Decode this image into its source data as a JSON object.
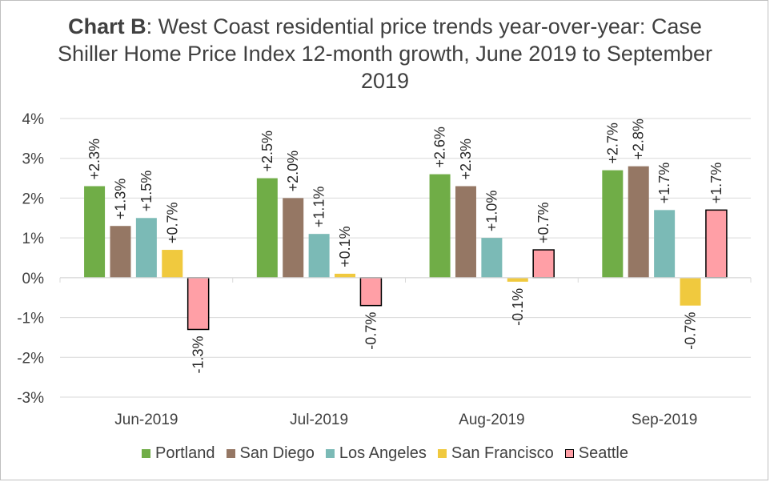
{
  "chart_data": {
    "type": "bar",
    "title_bold": "Chart B",
    "title_rest": ": West Coast residential price trends year-over-year: Case Shiller Home Price Index 12-month growth, June 2019 to September 2019",
    "categories": [
      "Jun-2019",
      "Jul-2019",
      "Aug-2019",
      "Sep-2019"
    ],
    "series": [
      {
        "name": "Portland",
        "color": "#70ad47",
        "values": [
          2.3,
          2.5,
          2.6,
          2.7
        ],
        "labels": [
          "+2.3%",
          "+2.5%",
          "+2.6%",
          "+2.7%"
        ]
      },
      {
        "name": "San Diego",
        "color": "#957764",
        "values": [
          1.3,
          2.0,
          2.3,
          2.8
        ],
        "labels": [
          "+1.3%",
          "+2.0%",
          "+2.3%",
          "+2.8%"
        ]
      },
      {
        "name": "Los Angeles",
        "color": "#7bbab6",
        "values": [
          1.5,
          1.1,
          1.0,
          1.7
        ],
        "labels": [
          "+1.5%",
          "+1.1%",
          "+1.0%",
          "+1.7%"
        ]
      },
      {
        "name": "San Francisco",
        "color": "#f0c93e",
        "values": [
          0.7,
          0.1,
          -0.1,
          -0.7
        ],
        "labels": [
          "+0.7%",
          "+0.1%",
          "-0.1%",
          "-0.7%"
        ]
      },
      {
        "name": "Seattle",
        "color": "#ff9fa6",
        "border": "#000000",
        "values": [
          -1.3,
          -0.7,
          0.7,
          1.7
        ],
        "labels": [
          "-1.3%",
          "-0.7%",
          "+0.7%",
          "+1.7%"
        ]
      }
    ],
    "ylim": [
      -3,
      4
    ],
    "yticks": [
      "-3%",
      "-2%",
      "-1%",
      "0%",
      "1%",
      "2%",
      "3%",
      "4%"
    ],
    "grid": true,
    "legend_position": "bottom"
  }
}
